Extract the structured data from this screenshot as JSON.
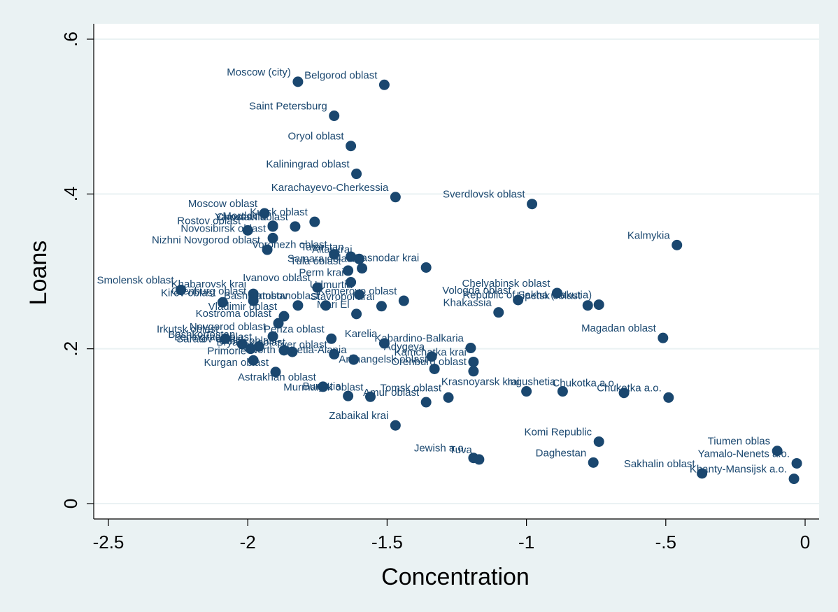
{
  "colors": {
    "outer_background": "#eaf2f3",
    "plot_background": "#ffffff",
    "marker": "#1a476f",
    "label_text": "#1a476f",
    "gridline": "#eaf2f3",
    "axis": "#000000"
  },
  "chart_data": {
    "type": "scatter",
    "xlabel": "Concentration",
    "ylabel": "Loans",
    "xlim": [
      -2.5,
      0
    ],
    "ylim": [
      0,
      0.6
    ],
    "xticks": [
      {
        "value": -2.5,
        "label": "-2.5"
      },
      {
        "value": -2,
        "label": "-2"
      },
      {
        "value": -1.5,
        "label": "-1.5"
      },
      {
        "value": -1,
        "label": "-1"
      },
      {
        "value": -0.5,
        "label": "-.5"
      },
      {
        "value": 0,
        "label": "0"
      }
    ],
    "yticks": [
      {
        "value": 0,
        "label": "0"
      },
      {
        "value": 0.2,
        "label": ".2"
      },
      {
        "value": 0.4,
        "label": ".4"
      },
      {
        "value": 0.6,
        "label": ".6"
      }
    ],
    "grid": "horizontal",
    "points": [
      {
        "name": "Moscow (city)",
        "x": -1.82,
        "y": 0.545
      },
      {
        "name": "Belgorod oblast",
        "x": -1.51,
        "y": 0.541
      },
      {
        "name": "Saint Petersburg",
        "x": -1.69,
        "y": 0.501
      },
      {
        "name": "Oryol oblast",
        "x": -1.63,
        "y": 0.462
      },
      {
        "name": "Kaliningrad oblast",
        "x": -1.61,
        "y": 0.426
      },
      {
        "name": "Karachayevo-Cherkessia",
        "x": -1.47,
        "y": 0.396
      },
      {
        "name": "Sverdlovsk oblast",
        "x": -0.98,
        "y": 0.387
      },
      {
        "name": "Moscow oblast",
        "x": -1.94,
        "y": 0.375
      },
      {
        "name": "Kursk oblast",
        "x": -1.76,
        "y": 0.364
      },
      {
        "name": "Yaroslavl oblast",
        "x": -1.83,
        "y": 0.358
      },
      {
        "name": "Mordovia",
        "x": -1.91,
        "y": 0.359
      },
      {
        "name": "Chuvashia",
        "x": -1.91,
        "y": 0.358
      },
      {
        "name": "Rostov oblast",
        "x": -2.0,
        "y": 0.353
      },
      {
        "name": "Novosibirsk oblast",
        "x": -1.91,
        "y": 0.343
      },
      {
        "name": "Kalmykia",
        "x": -0.46,
        "y": 0.334
      },
      {
        "name": "Nizhni Novgorod oblast",
        "x": -1.93,
        "y": 0.328
      },
      {
        "name": "Voronezh oblast",
        "x": -1.69,
        "y": 0.322
      },
      {
        "name": "Tatarstan",
        "x": -1.63,
        "y": 0.319
      },
      {
        "name": "Altai krai",
        "x": -1.6,
        "y": 0.316
      },
      {
        "name": "Krasnodar krai",
        "x": -1.36,
        "y": 0.305
      },
      {
        "name": "Samara oblast",
        "x": -1.59,
        "y": 0.304
      },
      {
        "name": "Tula oblast",
        "x": -1.64,
        "y": 0.301
      },
      {
        "name": "Perm krai",
        "x": -1.63,
        "y": 0.286
      },
      {
        "name": "Ivanovo oblast",
        "x": -1.75,
        "y": 0.279
      },
      {
        "name": "Smolensk oblast",
        "x": -2.24,
        "y": 0.276
      },
      {
        "name": "Khabarovsk krai",
        "x": -1.98,
        "y": 0.271
      },
      {
        "name": "Udmurtia",
        "x": -1.6,
        "y": 0.27
      },
      {
        "name": "Chelyabinsk oblast",
        "x": -0.89,
        "y": 0.272
      },
      {
        "name": "Kemerovo oblast",
        "x": -1.44,
        "y": 0.262
      },
      {
        "name": "Vologda oblast",
        "x": -1.03,
        "y": 0.263
      },
      {
        "name": "Lipetsk oblast",
        "x": -0.78,
        "y": 0.256
      },
      {
        "name": "Kirov oblast",
        "x": -2.09,
        "y": 0.26
      },
      {
        "name": "Orenburg oblast",
        "x": -1.98,
        "y": 0.262
      },
      {
        "name": "Bashkortostan",
        "x": -1.82,
        "y": 0.256
      },
      {
        "name": "Tambov oblast",
        "x": -1.72,
        "y": 0.256
      },
      {
        "name": "Stavropol krai",
        "x": -1.52,
        "y": 0.255
      },
      {
        "name": "Republic of Sakha (Yakutia)",
        "x": -0.74,
        "y": 0.257
      },
      {
        "name": "Khakassia",
        "x": -1.1,
        "y": 0.247
      },
      {
        "name": "Vladimir oblast",
        "x": -1.87,
        "y": 0.242
      },
      {
        "name": "Mari El",
        "x": -1.61,
        "y": 0.245
      },
      {
        "name": "Kostroma oblast",
        "x": -1.89,
        "y": 0.233
      },
      {
        "name": "Magadan oblast",
        "x": -0.51,
        "y": 0.214
      },
      {
        "name": "Novgorod oblast",
        "x": -1.91,
        "y": 0.216
      },
      {
        "name": "Penza oblast",
        "x": -1.7,
        "y": 0.213
      },
      {
        "name": "Irkutsk oblast",
        "x": -2.08,
        "y": 0.213
      },
      {
        "name": "Karelia",
        "x": -1.51,
        "y": 0.207
      },
      {
        "name": "Kabardino-Balkaria",
        "x": -1.2,
        "y": 0.201
      },
      {
        "name": "Bashkortostan",
        "x": -2.02,
        "y": 0.206
      },
      {
        "name": "Saratov oblast",
        "x": -1.99,
        "y": 0.2
      },
      {
        "name": "Leningrad oblast",
        "x": -1.96,
        "y": 0.203
      },
      {
        "name": "Bryansk oblast",
        "x": -1.84,
        "y": 0.196
      },
      {
        "name": "Omsk oblast",
        "x": -1.87,
        "y": 0.198
      },
      {
        "name": "Adygeya",
        "x": -1.34,
        "y": 0.19
      },
      {
        "name": "Tver oblast",
        "x": -1.69,
        "y": 0.193
      },
      {
        "name": "Kamchatka krai",
        "x": -1.19,
        "y": 0.183
      },
      {
        "name": "North Ossetia-Alania",
        "x": -1.62,
        "y": 0.186
      },
      {
        "name": "Arkhangelsk oblast",
        "x": -1.33,
        "y": 0.174
      },
      {
        "name": "Primorie",
        "x": -1.98,
        "y": 0.185
      },
      {
        "name": "Orenburg oblast",
        "x": -1.19,
        "y": 0.171
      },
      {
        "name": "Kurgan oblast",
        "x": -1.9,
        "y": 0.17
      },
      {
        "name": "Astrakhan oblast",
        "x": -1.73,
        "y": 0.151
      },
      {
        "name": "Buryatia",
        "x": -1.64,
        "y": 0.139
      },
      {
        "name": "Murmansk oblast",
        "x": -1.56,
        "y": 0.138
      },
      {
        "name": "Amur oblast",
        "x": -1.36,
        "y": 0.131
      },
      {
        "name": "Tomsk oblast",
        "x": -1.28,
        "y": 0.137
      },
      {
        "name": "Krasnoyarsk krai",
        "x": -1.0,
        "y": 0.145
      },
      {
        "name": "Ingushetia",
        "x": -0.87,
        "y": 0.145
      },
      {
        "name": "Chukotka a.o.",
        "x": -0.65,
        "y": 0.143
      },
      {
        "name": "Chukotka a.o.",
        "x": -0.49,
        "y": 0.137
      },
      {
        "name": "Zabaikal krai",
        "x": -1.47,
        "y": 0.101
      },
      {
        "name": "Komi Republic",
        "x": -0.74,
        "y": 0.08
      },
      {
        "name": "Tiumen oblas",
        "x": -0.1,
        "y": 0.068
      },
      {
        "name": "Jewish a.o.",
        "x": -1.19,
        "y": 0.059
      },
      {
        "name": "Tuva",
        "x": -1.17,
        "y": 0.057
      },
      {
        "name": "Daghestan",
        "x": -0.76,
        "y": 0.053
      },
      {
        "name": "Yamalo-Nenets a.o.",
        "x": -0.03,
        "y": 0.052
      },
      {
        "name": "Sakhalin oblast",
        "x": -0.37,
        "y": 0.039
      },
      {
        "name": "Khanty-Mansijsk a.o.",
        "x": -0.04,
        "y": 0.032
      }
    ]
  }
}
